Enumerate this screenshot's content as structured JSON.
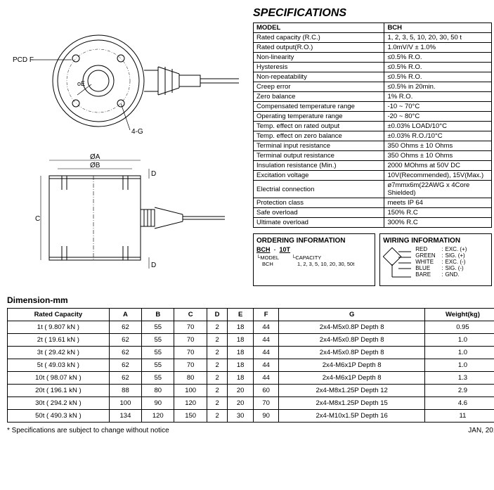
{
  "title_specs": "SPECIFICATIONS",
  "specs_header1": "MODEL",
  "specs_header2": "BCH",
  "specs": [
    [
      "Rated capacity (R.C.)",
      "1, 2, 3, 5, 10, 20, 30, 50 t"
    ],
    [
      "Rated output(R.O.)",
      "1.0mV/V ± 1.0%"
    ],
    [
      "Non-linearity",
      "≤0.5% R.O."
    ],
    [
      "Hysteresis",
      "≤0.5% R.O."
    ],
    [
      "Non-repeatability",
      "≤0.5% R.O."
    ],
    [
      "Creep error",
      "≤0.5% in 20min."
    ],
    [
      "Zero balance",
      "1% R.O."
    ],
    [
      "Compensated temperature range",
      "-10 ~ 70°C"
    ],
    [
      "Operating temperature range",
      "-20 ~ 80°C"
    ],
    [
      "Temp. effect on rated output",
      "±0.03% LOAD/10°C"
    ],
    [
      "Temp. effect on zero balance",
      "±0.03% R.O./10°C"
    ],
    [
      "Terminal input resistance",
      "350 Ohms ± 10 Ohms"
    ],
    [
      "Terminal output resistance",
      "350 Ohms ± 10 Ohms"
    ],
    [
      "Insulation resistance (Min.)",
      "2000 MOhms at 50V DC"
    ],
    [
      "Excitation voltage",
      "10V(Recommended), 15V(Max.)"
    ],
    [
      "Electrial connection",
      "ø7mmx6m(22AWG x 4Core Shielded)"
    ],
    [
      "Protection class",
      "meets IP 64"
    ],
    [
      "Safe overload",
      "150% R.C"
    ],
    [
      "Ultimate overload",
      "300% R.C"
    ]
  ],
  "ordering_title": "ORDERING INFORMATION",
  "ordering_model": "BCH",
  "ordering_dash": "-",
  "ordering_cap": "10T",
  "ordering_model_lbl": "MODEL",
  "ordering_model_val": "BCH",
  "ordering_cap_lbl": "CAPACITY",
  "ordering_cap_val": "1, 2, 3, 5, 10, 20, 30, 50t",
  "wiring_title": "WIRING INFORMATION",
  "wires": [
    [
      "RED",
      "EXC. (+)"
    ],
    [
      "GREEN",
      "SIG. (+)"
    ],
    [
      "WHITE",
      "EXC. (-)"
    ],
    [
      "BLUE",
      "SIG. (-)"
    ],
    [
      "BARE",
      "GND."
    ]
  ],
  "dim_title": "Dimension-mm",
  "dim_headers": [
    "Rated Capacity",
    "A",
    "B",
    "C",
    "D",
    "E",
    "F",
    "G",
    "Weight(kg)"
  ],
  "dim_rows": [
    [
      "1t ( 9.807 kN )",
      "62",
      "55",
      "70",
      "2",
      "18",
      "44",
      "2x4-M5x0.8P Depth 8",
      "0.95"
    ],
    [
      "2t ( 19.61 kN )",
      "62",
      "55",
      "70",
      "2",
      "18",
      "44",
      "2x4-M5x0.8P Depth 8",
      "1.0"
    ],
    [
      "3t ( 29.42 kN )",
      "62",
      "55",
      "70",
      "2",
      "18",
      "44",
      "2x4-M5x0.8P Depth 8",
      "1.0"
    ],
    [
      "5t ( 49.03 kN )",
      "62",
      "55",
      "70",
      "2",
      "18",
      "44",
      "2x4-M6x1P Depth 8",
      "1.0"
    ],
    [
      "10t ( 98.07 kN )",
      "62",
      "55",
      "80",
      "2",
      "18",
      "44",
      "2x4-M6x1P Depth 8",
      "1.3"
    ],
    [
      "20t ( 196.1 kN )",
      "88",
      "80",
      "100",
      "2",
      "20",
      "60",
      "2x4-M8x1.25P Depth 12",
      "2.9"
    ],
    [
      "30t ( 294.2 kN )",
      "100",
      "90",
      "120",
      "2",
      "20",
      "70",
      "2x4-M8x1.25P Depth 15",
      "4.6"
    ],
    [
      "50t ( 490.3 kN )",
      "134",
      "120",
      "150",
      "2",
      "30",
      "90",
      "2x4-M10x1.5P Depth 16",
      "11"
    ]
  ],
  "footer_note": "* Specifications are subject to change without notice",
  "footer_date": "JAN, 2010",
  "diag_labels": {
    "pcdf": "PCD F",
    "oe": "oE",
    "fourg": "4-G",
    "oa": "ØA",
    "ob": "ØB",
    "c": "C",
    "d": "D"
  }
}
